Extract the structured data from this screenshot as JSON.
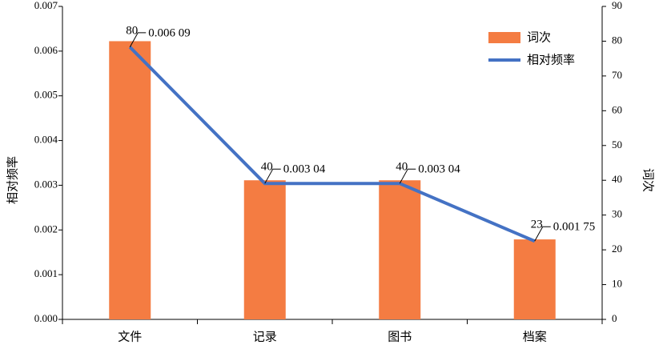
{
  "chart_data": {
    "type": "bar",
    "y_label": "相对频率",
    "y2_label": "词次",
    "categories": [
      "文件",
      "记录",
      "图书",
      "档案"
    ],
    "series": [
      {
        "name": "词次",
        "type": "bar",
        "color": "#f47c42",
        "axis": "y2",
        "values": [
          80,
          40,
          40,
          23
        ]
      },
      {
        "name": "相对频率",
        "type": "line",
        "color": "#4472c4",
        "values": [
          0.00609,
          0.00304,
          0.00304,
          0.00175
        ],
        "value_labels": [
          "0.006 09",
          "0.003 04",
          "0.003 04",
          "0.001 75"
        ]
      }
    ],
    "ylim": [
      0,
      0.007
    ],
    "yticks": [
      {
        "value": 0,
        "label": "0.000"
      },
      0.001,
      0.002,
      0.003,
      0.004,
      0.005,
      0.006,
      0.007
    ],
    "y2lim": [
      0,
      90
    ],
    "y2ticks": [
      0,
      10,
      20,
      30,
      40,
      50,
      60,
      70,
      80,
      90
    ],
    "legend": "upper right"
  }
}
